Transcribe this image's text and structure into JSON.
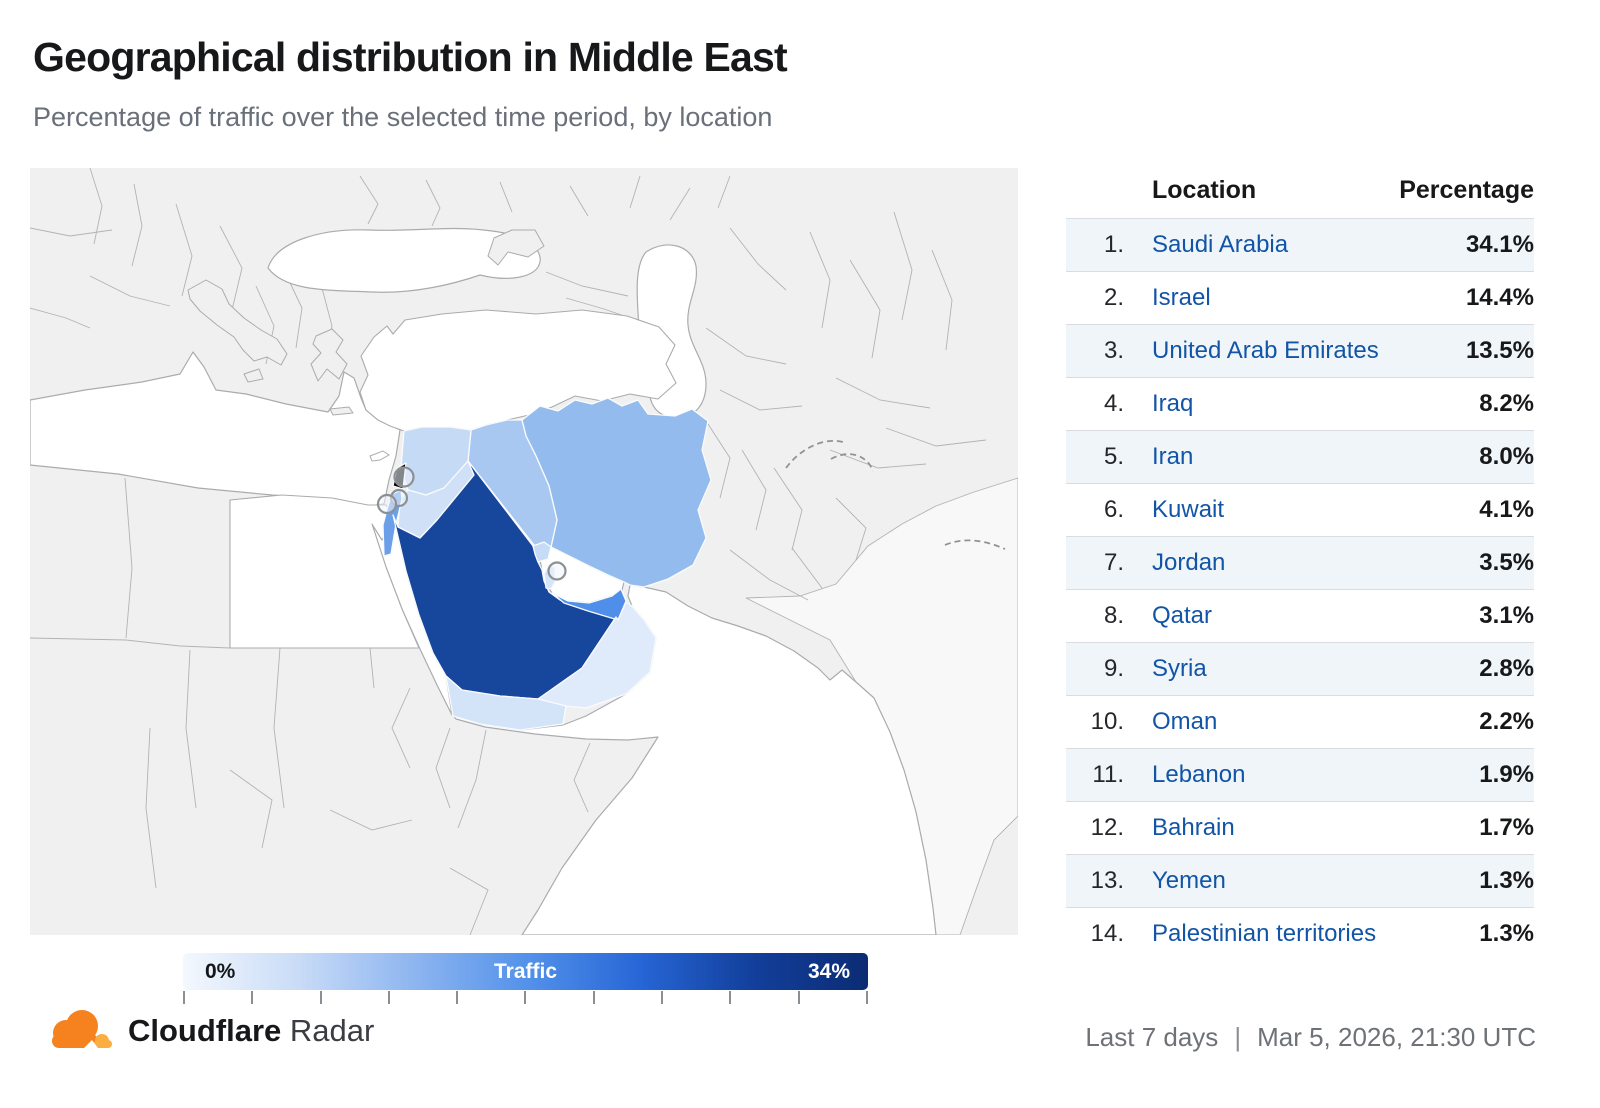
{
  "header": {
    "title": "Geographical distribution in Middle East",
    "subtitle": "Percentage of traffic over the selected time period, by location"
  },
  "table": {
    "columns": {
      "location": "Location",
      "percentage": "Percentage"
    },
    "rows": [
      {
        "rank": "1.",
        "location": "Saudi Arabia",
        "percentage": "34.1%"
      },
      {
        "rank": "2.",
        "location": "Israel",
        "percentage": "14.4%"
      },
      {
        "rank": "3.",
        "location": "United Arab Emirates",
        "percentage": "13.5%"
      },
      {
        "rank": "4.",
        "location": "Iraq",
        "percentage": "8.2%"
      },
      {
        "rank": "5.",
        "location": "Iran",
        "percentage": "8.0%"
      },
      {
        "rank": "6.",
        "location": "Kuwait",
        "percentage": "4.1%"
      },
      {
        "rank": "7.",
        "location": "Jordan",
        "percentage": "3.5%"
      },
      {
        "rank": "8.",
        "location": "Qatar",
        "percentage": "3.1%"
      },
      {
        "rank": "9.",
        "location": "Syria",
        "percentage": "2.8%"
      },
      {
        "rank": "10.",
        "location": "Oman",
        "percentage": "2.2%"
      },
      {
        "rank": "11.",
        "location": "Lebanon",
        "percentage": "1.9%"
      },
      {
        "rank": "12.",
        "location": "Bahrain",
        "percentage": "1.7%"
      },
      {
        "rank": "13.",
        "location": "Yemen",
        "percentage": "1.3%"
      },
      {
        "rank": "14.",
        "location": "Palestinian territories",
        "percentage": "1.3%"
      }
    ]
  },
  "legend": {
    "min_label": "0%",
    "bar_label": "Traffic",
    "max_label": "34%",
    "tick_count": 11,
    "gradient": [
      "#f4f8fe",
      "#c9dcf7",
      "#8fb6f0",
      "#5492ea",
      "#2766d6",
      "#123f9b",
      "#0b2c74"
    ]
  },
  "map": {
    "land_color": "#f0f0f0",
    "sea_color": "#ffffff",
    "border_color": "#a9acaf",
    "colors": {
      "saudi-arabia": "#17469d",
      "israel": "#6b9fe8",
      "united-arab-emirates": "#4f8ee9",
      "iraq": "#a9c8f1",
      "iran": "#93bbed",
      "kuwait": "#c6dbf6",
      "jordan": "#cfe0f7",
      "qatar": "#d6e5f9",
      "syria": "#c5daf5",
      "oman": "#dfeafa",
      "yemen": "#d3e3f8"
    }
  },
  "footer": {
    "brand_bold": "Cloudflare",
    "brand_light": "Radar",
    "time_range": "Last 7 days",
    "separator": "|",
    "timestamp": "Mar 5, 2026, 21:30 UTC"
  },
  "chart_data": {
    "type": "heatmap",
    "subtype": "choropleth-map",
    "title": "Geographical distribution in Middle East",
    "subtitle": "Percentage of traffic over the selected time period, by location",
    "categories": [
      "Saudi Arabia",
      "Israel",
      "United Arab Emirates",
      "Iraq",
      "Iran",
      "Kuwait",
      "Jordan",
      "Qatar",
      "Syria",
      "Oman",
      "Lebanon",
      "Bahrain",
      "Yemen",
      "Palestinian territories"
    ],
    "values": [
      34.1,
      14.4,
      13.5,
      8.2,
      8.0,
      4.1,
      3.5,
      3.1,
      2.8,
      2.2,
      1.9,
      1.7,
      1.3,
      1.3
    ],
    "unit": "%",
    "legend": {
      "label": "Traffic",
      "min": "0%",
      "max": "34%",
      "position": "bottom"
    },
    "colorscale": [
      "#f4f8fe",
      "#0b2c74"
    ],
    "range": [
      0,
      34
    ]
  }
}
